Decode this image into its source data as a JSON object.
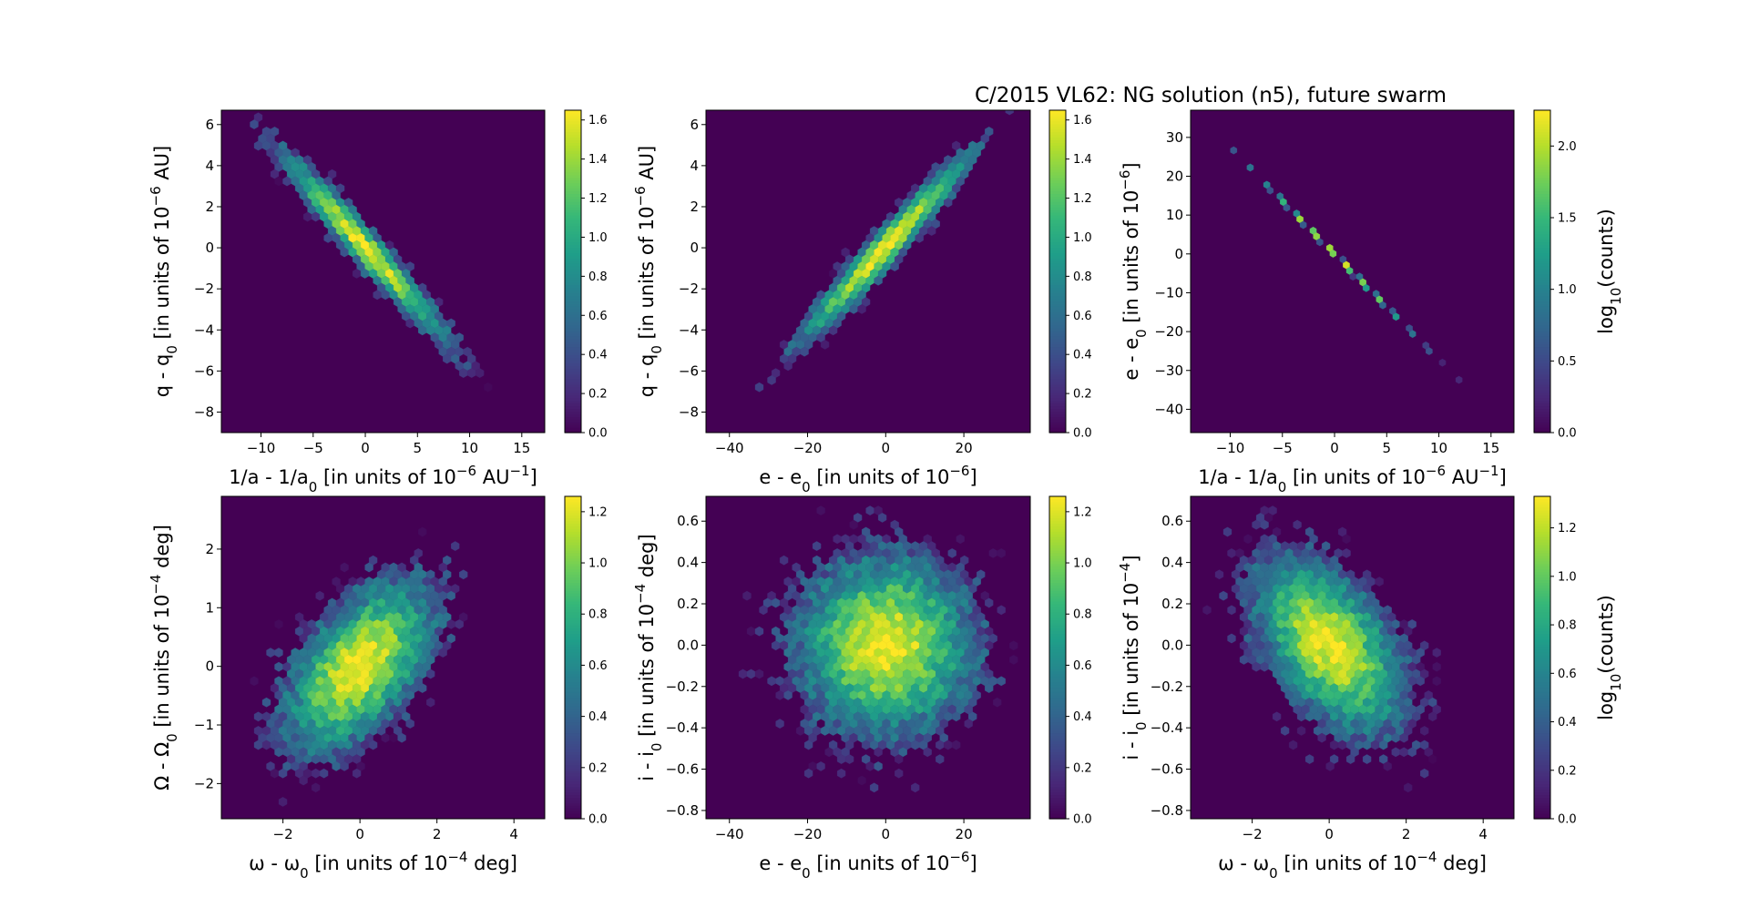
{
  "figure": {
    "title": "C/2015 VL62: NG solution (n5),  future swarm"
  },
  "chart_data": [
    {
      "type": "heatmap",
      "subtype": "hexbin",
      "xlabel": "1/a - 1/a",
      "xlabel_sub": "0",
      "xlabel_rest": " [in units of 10",
      "xlabel_sup": "−6",
      "xlabel_end": " AU",
      "xlabel_sup2": "−1",
      "xlabel_close": "]",
      "ylabel": "q - q",
      "ylabel_sub": "0",
      "ylabel_rest": " [in units of 10",
      "ylabel_sup": "−6",
      "ylabel_end": " AU]",
      "xlim": [
        -13.8,
        17.2
      ],
      "ylim": [
        -9.0,
        6.7
      ],
      "xticks": [
        -10,
        -5,
        0,
        5,
        10,
        15
      ],
      "yticks": [
        -8,
        -6,
        -4,
        -2,
        0,
        2,
        4,
        6
      ],
      "colorbar": {
        "ticks": [
          0.0,
          0.2,
          0.4,
          0.6,
          0.8,
          1.0,
          1.2,
          1.4,
          1.6
        ],
        "max": 1.65,
        "label": ""
      },
      "distribution": {
        "center": [
          0,
          0
        ],
        "sigma_x": 4.2,
        "sigma_y": 2.4,
        "correlation": -0.97,
        "peak_log10_count": 1.62
      }
    },
    {
      "type": "heatmap",
      "subtype": "hexbin",
      "xlabel": "e - e",
      "xlabel_sub": "0",
      "xlabel_rest": " [in units of 10",
      "xlabel_sup": "−6",
      "xlabel_end": "]",
      "ylabel": "q - q",
      "ylabel_sub": "0",
      "ylabel_rest": " [in units of 10",
      "ylabel_sup": "−6",
      "ylabel_end": " AU]",
      "xlim": [
        -46,
        37
      ],
      "ylim": [
        -9.0,
        6.7
      ],
      "xticks": [
        -40,
        -20,
        0,
        20
      ],
      "yticks": [
        -8,
        -6,
        -4,
        -2,
        0,
        2,
        4,
        6
      ],
      "colorbar": {
        "ticks": [
          0.0,
          0.2,
          0.4,
          0.6,
          0.8,
          1.0,
          1.2,
          1.4,
          1.6
        ],
        "max": 1.65,
        "label": ""
      },
      "distribution": {
        "center": [
          0,
          0
        ],
        "sigma_x": 11.5,
        "sigma_y": 2.4,
        "correlation": 0.97,
        "peak_log10_count": 1.62
      }
    },
    {
      "type": "heatmap",
      "subtype": "hexbin",
      "xlabel": "1/a - 1/a",
      "xlabel_sub": "0",
      "xlabel_rest": " [in units of 10",
      "xlabel_sup": "−6",
      "xlabel_end": " AU",
      "xlabel_sup2": "−1",
      "xlabel_close": "]",
      "ylabel": "e - e",
      "ylabel_sub": "0",
      "ylabel_rest": " [in units of 10",
      "ylabel_sup": "−6",
      "ylabel_end": "]",
      "xlim": [
        -13.8,
        17.2
      ],
      "ylim": [
        -46,
        37
      ],
      "xticks": [
        -10,
        -5,
        0,
        5,
        10,
        15
      ],
      "yticks": [
        -40,
        -30,
        -20,
        -10,
        0,
        10,
        20,
        30
      ],
      "colorbar": {
        "ticks": [
          0.0,
          0.5,
          1.0,
          1.5,
          2.0
        ],
        "max": 2.25,
        "label": "log10(counts)",
        "label_main": "log",
        "label_sub": "10",
        "label_end": "(counts)"
      },
      "distribution": {
        "center": [
          0,
          0
        ],
        "sigma_x": 4.2,
        "sigma_y": 11.5,
        "correlation": -0.9995,
        "peak_log10_count": 2.2
      }
    },
    {
      "type": "heatmap",
      "subtype": "hexbin",
      "xlabel": "ω - ω",
      "xlabel_sub": "0",
      "xlabel_rest": " [in units of 10",
      "xlabel_sup": "−4",
      "xlabel_end": " deg]",
      "ylabel": "Ω - Ω",
      "ylabel_sub": "0",
      "ylabel_rest": " [in units of 10",
      "ylabel_sup": "−4",
      "ylabel_end": " deg]",
      "xlim": [
        -3.6,
        4.8
      ],
      "ylim": [
        -2.6,
        2.9
      ],
      "xticks": [
        -2,
        0,
        2,
        4
      ],
      "yticks": [
        -2,
        -1,
        0,
        1,
        2
      ],
      "colorbar": {
        "ticks": [
          0.0,
          0.2,
          0.4,
          0.6,
          0.8,
          1.0,
          1.2
        ],
        "max": 1.26,
        "label": ""
      },
      "distribution": {
        "center": [
          0,
          0
        ],
        "sigma_x": 1.0,
        "sigma_y": 0.75,
        "correlation": 0.55,
        "peak_log10_count": 1.25
      }
    },
    {
      "type": "heatmap",
      "subtype": "hexbin",
      "xlabel": "e - e",
      "xlabel_sub": "0",
      "xlabel_rest": " [in units of 10",
      "xlabel_sup": "−6",
      "xlabel_end": "]",
      "ylabel": "i - i",
      "ylabel_sub": "0",
      "ylabel_rest": " [in units of 10",
      "ylabel_sup": "−4",
      "ylabel_end": " deg]",
      "xlim": [
        -46,
        37
      ],
      "ylim": [
        -0.84,
        0.72
      ],
      "xticks": [
        -40,
        -20,
        0,
        20
      ],
      "yticks": [
        -0.8,
        -0.6,
        -0.4,
        -0.2,
        0.0,
        0.2,
        0.4,
        0.6
      ],
      "yticklabels": [
        "−0.8",
        "−0.6",
        "−0.4",
        "−0.2",
        "0.0",
        "0.2",
        "0.4",
        "0.6"
      ],
      "colorbar": {
        "ticks": [
          0.0,
          0.2,
          0.4,
          0.6,
          0.8,
          1.0,
          1.2
        ],
        "max": 1.26,
        "label": ""
      },
      "distribution": {
        "center": [
          0,
          0
        ],
        "sigma_x": 11.5,
        "sigma_y": 0.22,
        "correlation": 0.0,
        "peak_log10_count": 1.25
      }
    },
    {
      "type": "heatmap",
      "subtype": "hexbin",
      "xlabel": "ω - ω",
      "xlabel_sub": "0",
      "xlabel_rest": " [in units of 10",
      "xlabel_sup": "−4",
      "xlabel_end": " deg]",
      "ylabel": "i - i",
      "ylabel_sub": "0",
      "ylabel_rest": " [in units of 10",
      "ylabel_sup": "−4",
      "ylabel_end": "]",
      "xlim": [
        -3.6,
        4.8
      ],
      "ylim": [
        -0.84,
        0.72
      ],
      "xticks": [
        -2,
        0,
        2,
        4
      ],
      "yticks": [
        -0.8,
        -0.6,
        -0.4,
        -0.2,
        0.0,
        0.2,
        0.4,
        0.6
      ],
      "yticklabels": [
        "−0.8",
        "−0.6",
        "−0.4",
        "−0.2",
        "0.0",
        "0.2",
        "0.4",
        "0.6"
      ],
      "colorbar": {
        "ticks": [
          0.0,
          0.2,
          0.4,
          0.6,
          0.8,
          1.0,
          1.2
        ],
        "max": 1.33,
        "label": "log10(counts)",
        "label_main": "log",
        "label_sub": "10",
        "label_end": "(counts)"
      },
      "distribution": {
        "center": [
          0,
          0
        ],
        "sigma_x": 1.0,
        "sigma_y": 0.22,
        "correlation": -0.5,
        "peak_log10_count": 1.3
      }
    }
  ],
  "colors": {
    "background": "#440154",
    "viridis": [
      "#440154",
      "#482878",
      "#3e4989",
      "#31688e",
      "#26828e",
      "#1f9e89",
      "#35b779",
      "#6ece58",
      "#b5de2b",
      "#fde725"
    ]
  }
}
